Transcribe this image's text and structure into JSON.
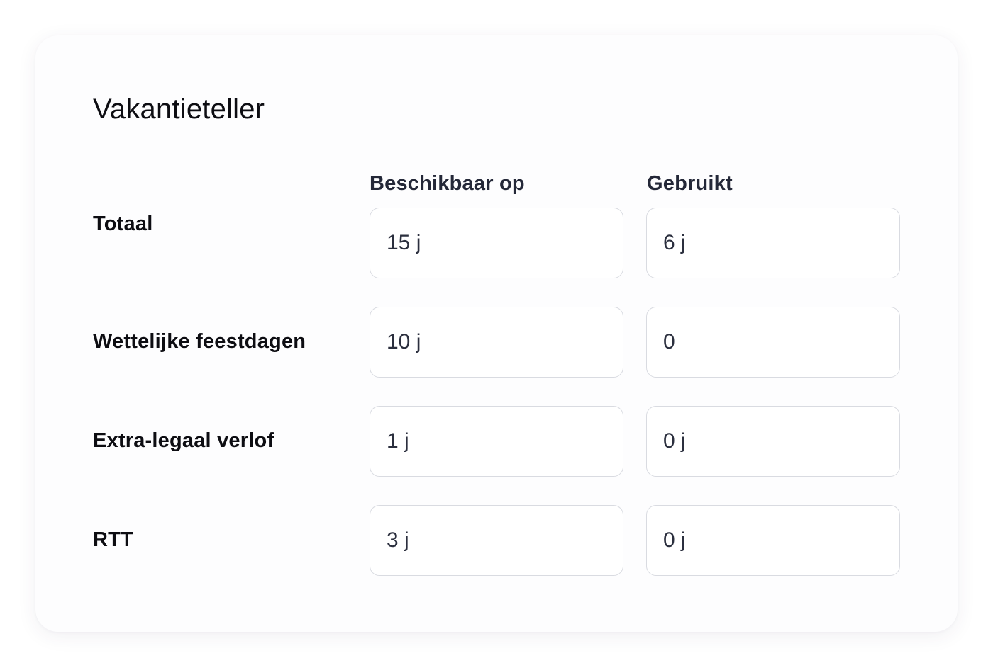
{
  "counter": {
    "title": "Vakantieteller",
    "columns": {
      "available": "Beschikbaar op",
      "used": "Gebruikt"
    },
    "rows": [
      {
        "label": "Totaal",
        "available": "15 j",
        "used": "6 j"
      },
      {
        "label": "Wettelijke feestdagen",
        "available": "10 j",
        "used": "0"
      },
      {
        "label": "Extra-legaal verlof",
        "available": "1 j",
        "used": "0 j"
      },
      {
        "label": "RTT",
        "available": "3 j",
        "used": "0 j"
      }
    ]
  }
}
